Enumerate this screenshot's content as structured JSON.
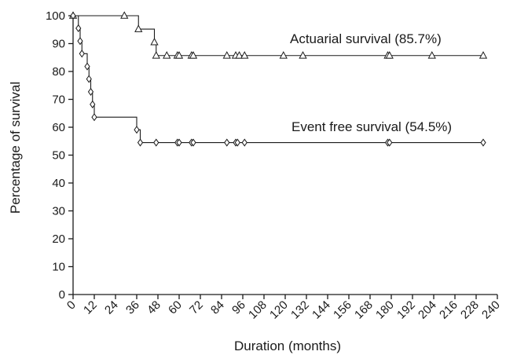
{
  "chart_data": {
    "type": "line",
    "xlabel": "Duration (months)",
    "ylabel": "Percentage of survival",
    "xlim": [
      0,
      240
    ],
    "ylim": [
      0,
      100
    ],
    "xticks": [
      "0",
      "12",
      "24",
      "36",
      "48",
      "60",
      "72",
      "84",
      "96",
      "108",
      "120",
      "132",
      "144",
      "156",
      "168",
      "180",
      "192",
      "204",
      "216",
      "228",
      "240"
    ],
    "yticks": [
      "0",
      "10",
      "20",
      "30",
      "40",
      "50",
      "60",
      "70",
      "80",
      "90",
      "100"
    ],
    "grid": false,
    "series": [
      {
        "label": "Actuarial survival (85.7%)",
        "marker": "triangle",
        "color": "#1a1a1a",
        "steps": [
          [
            0,
            100
          ],
          [
            37,
            100
          ],
          [
            37,
            95.2
          ],
          [
            46,
            95.2
          ],
          [
            46,
            90.5
          ],
          [
            47,
            90.5
          ],
          [
            47,
            85.7
          ],
          [
            232,
            85.7
          ]
        ],
        "markers": [
          [
            0,
            100
          ],
          [
            29,
            100
          ],
          [
            37,
            95.2
          ],
          [
            46,
            90.5
          ],
          [
            47,
            85.7
          ],
          [
            53,
            85.7
          ],
          [
            59,
            85.7
          ],
          [
            60,
            85.7
          ],
          [
            67,
            85.7
          ],
          [
            68,
            85.7
          ],
          [
            87,
            85.7
          ],
          [
            92,
            85.7
          ],
          [
            94,
            85.7
          ],
          [
            97,
            85.7
          ],
          [
            119,
            85.7
          ],
          [
            130,
            85.7
          ],
          [
            178,
            85.7
          ],
          [
            179,
            85.7
          ],
          [
            203,
            85.7
          ],
          [
            232,
            85.7
          ]
        ]
      },
      {
        "label": "Event free survival (54.5%)",
        "marker": "diamond",
        "color": "#1a1a1a",
        "steps": [
          [
            0,
            100
          ],
          [
            3,
            100
          ],
          [
            3,
            95.5
          ],
          [
            4,
            95.5
          ],
          [
            4,
            90.9
          ],
          [
            5,
            90.9
          ],
          [
            5,
            86.4
          ],
          [
            8,
            86.4
          ],
          [
            8,
            81.8
          ],
          [
            9,
            81.8
          ],
          [
            9,
            77.3
          ],
          [
            10,
            77.3
          ],
          [
            10,
            72.7
          ],
          [
            11,
            72.7
          ],
          [
            11,
            68.2
          ],
          [
            12,
            68.2
          ],
          [
            12,
            63.6
          ],
          [
            36,
            63.6
          ],
          [
            36,
            59.1
          ],
          [
            38,
            59.1
          ],
          [
            38,
            54.5
          ],
          [
            232,
            54.5
          ]
        ],
        "markers": [
          [
            0,
            100
          ],
          [
            3,
            95.5
          ],
          [
            4,
            90.9
          ],
          [
            5,
            86.4
          ],
          [
            8,
            81.8
          ],
          [
            9,
            77.3
          ],
          [
            10,
            72.7
          ],
          [
            11,
            68.2
          ],
          [
            12,
            63.6
          ],
          [
            36,
            59.1
          ],
          [
            38,
            54.5
          ],
          [
            47,
            54.5
          ],
          [
            59,
            54.5
          ],
          [
            60,
            54.5
          ],
          [
            67,
            54.5
          ],
          [
            68,
            54.5
          ],
          [
            87,
            54.5
          ],
          [
            92,
            54.5
          ],
          [
            93,
            54.5
          ],
          [
            97,
            54.5
          ],
          [
            178,
            54.5
          ],
          [
            179,
            54.5
          ],
          [
            232,
            54.5
          ]
        ]
      }
    ]
  }
}
